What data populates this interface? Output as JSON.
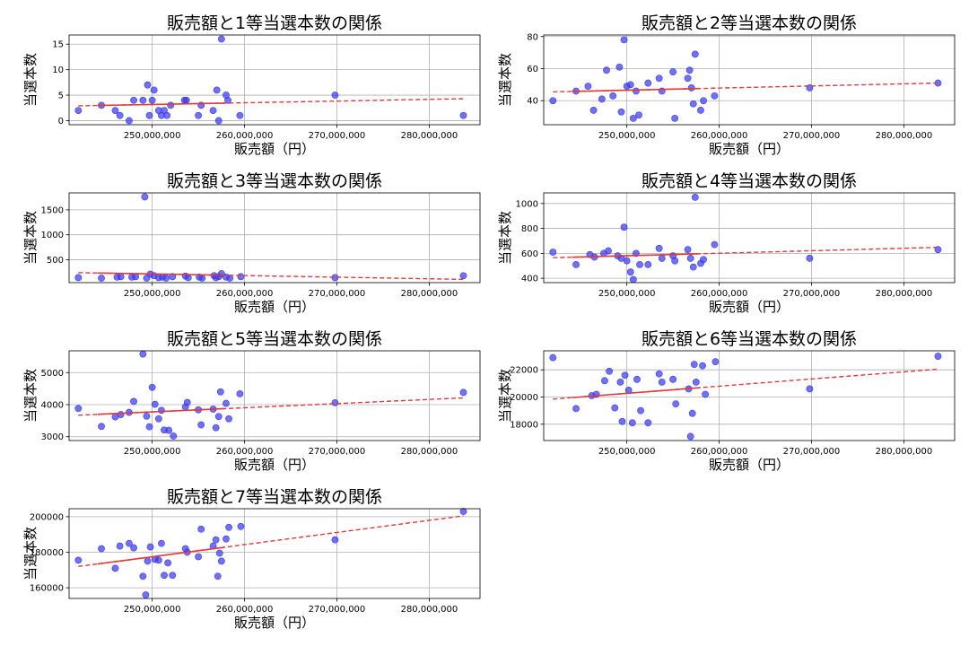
{
  "colors": {
    "point": "#3a3aee",
    "trend": "#e03a3a",
    "grid": "#b0b0b0"
  },
  "chart_data": [
    {
      "type": "scatter",
      "title": "販売額と1等当選本数の関係",
      "xlabel": "販売額（円）",
      "ylabel": "当選本数",
      "xlim": [
        241000000,
        285500000
      ],
      "ylim": [
        -0.8,
        16.8
      ],
      "xticks": [
        250000000,
        260000000,
        270000000,
        280000000
      ],
      "xtick_labels": [
        "250,000,000",
        "260,000,000",
        "270,000,000",
        "280,000,000"
      ],
      "yticks": [
        0,
        5,
        10,
        15
      ],
      "ytick_labels": [
        "0",
        "5",
        "10",
        "15"
      ],
      "grid": true,
      "points": [
        [
          242000000,
          2
        ],
        [
          244500000,
          3
        ],
        [
          246000000,
          2
        ],
        [
          246500000,
          1
        ],
        [
          247500000,
          0
        ],
        [
          248000000,
          4
        ],
        [
          249000000,
          4
        ],
        [
          249500000,
          7
        ],
        [
          249700000,
          1
        ],
        [
          250000000,
          4
        ],
        [
          250200000,
          6
        ],
        [
          250700000,
          2
        ],
        [
          251000000,
          1
        ],
        [
          251300000,
          2
        ],
        [
          251600000,
          1
        ],
        [
          252000000,
          3
        ],
        [
          253500000,
          4
        ],
        [
          253700000,
          4
        ],
        [
          255000000,
          1
        ],
        [
          255300000,
          3
        ],
        [
          256600000,
          2
        ],
        [
          257000000,
          6
        ],
        [
          257200000,
          0
        ],
        [
          257500000,
          16
        ],
        [
          258000000,
          5
        ],
        [
          258200000,
          4
        ],
        [
          259500000,
          1
        ],
        [
          269800000,
          5
        ],
        [
          283700000,
          1
        ]
      ],
      "trend": [
        [
          242000000,
          2.9
        ],
        [
          283700000,
          4.3
        ]
      ]
    },
    {
      "type": "scatter",
      "title": "販売額と2等当選本数の関係",
      "xlabel": "販売額（円）",
      "ylabel": "当選本数",
      "xlim": [
        241000000,
        285500000
      ],
      "ylim": [
        25,
        81
      ],
      "xticks": [
        250000000,
        260000000,
        270000000,
        280000000
      ],
      "xtick_labels": [
        "250,000,000",
        "260,000,000",
        "270,000,000",
        "280,000,000"
      ],
      "yticks": [
        40,
        60,
        80
      ],
      "ytick_labels": [
        "40",
        "60",
        "80"
      ],
      "grid": true,
      "points": [
        [
          242000000,
          40
        ],
        [
          244500000,
          46
        ],
        [
          245800000,
          49
        ],
        [
          246400000,
          34
        ],
        [
          247300000,
          41
        ],
        [
          247800000,
          59
        ],
        [
          248500000,
          43
        ],
        [
          249200000,
          61
        ],
        [
          249400000,
          33
        ],
        [
          249700000,
          78
        ],
        [
          250000000,
          49
        ],
        [
          250400000,
          50
        ],
        [
          250700000,
          29
        ],
        [
          251000000,
          46
        ],
        [
          251300000,
          31
        ],
        [
          252300000,
          51
        ],
        [
          253500000,
          54
        ],
        [
          253800000,
          46
        ],
        [
          255000000,
          58
        ],
        [
          255200000,
          29
        ],
        [
          256600000,
          54
        ],
        [
          256800000,
          59
        ],
        [
          257000000,
          48
        ],
        [
          257200000,
          38
        ],
        [
          257400000,
          69
        ],
        [
          258000000,
          34
        ],
        [
          258300000,
          40
        ],
        [
          259500000,
          43
        ],
        [
          269800000,
          48
        ],
        [
          283700000,
          51
        ]
      ],
      "trend": [
        [
          242000000,
          45.5
        ],
        [
          283700000,
          51
        ]
      ]
    },
    {
      "type": "scatter",
      "title": "販売額と3等当選本数の関係",
      "xlabel": "販売額（円）",
      "ylabel": "当選本数",
      "xlim": [
        241000000,
        285500000
      ],
      "ylim": [
        40,
        1840
      ],
      "xticks": [
        250000000,
        260000000,
        270000000,
        280000000
      ],
      "xtick_labels": [
        "250,000,000",
        "260,000,000",
        "270,000,000",
        "280,000,000"
      ],
      "yticks": [
        500,
        1000,
        1500
      ],
      "ytick_labels": [
        "500",
        "1000",
        "1500"
      ],
      "grid": true,
      "points": [
        [
          242000000,
          140
        ],
        [
          244500000,
          130
        ],
        [
          246200000,
          150
        ],
        [
          246600000,
          160
        ],
        [
          247800000,
          150
        ],
        [
          248200000,
          160
        ],
        [
          249200000,
          1760
        ],
        [
          249400000,
          130
        ],
        [
          249800000,
          210
        ],
        [
          250200000,
          180
        ],
        [
          250700000,
          140
        ],
        [
          251100000,
          150
        ],
        [
          251500000,
          130
        ],
        [
          252200000,
          160
        ],
        [
          253600000,
          170
        ],
        [
          253900000,
          140
        ],
        [
          255100000,
          150
        ],
        [
          255400000,
          130
        ],
        [
          256700000,
          180
        ],
        [
          256900000,
          140
        ],
        [
          257200000,
          160
        ],
        [
          257500000,
          220
        ],
        [
          258000000,
          150
        ],
        [
          258400000,
          130
        ],
        [
          259600000,
          160
        ],
        [
          269800000,
          140
        ],
        [
          283700000,
          180
        ]
      ],
      "trend": [
        [
          242000000,
          240
        ],
        [
          283700000,
          105
        ]
      ]
    },
    {
      "type": "scatter",
      "title": "販売額と4等当選本数の関係",
      "xlabel": "販売額（円）",
      "ylabel": "当選本数",
      "xlim": [
        241000000,
        285500000
      ],
      "ylim": [
        365,
        1085
      ],
      "xticks": [
        250000000,
        260000000,
        270000000,
        280000000
      ],
      "xtick_labels": [
        "250,000,000",
        "260,000,000",
        "270,000,000",
        "280,000,000"
      ],
      "yticks": [
        400,
        600,
        800,
        1000
      ],
      "ytick_labels": [
        "400",
        "600",
        "800",
        "1000"
      ],
      "grid": true,
      "points": [
        [
          242000000,
          610
        ],
        [
          244500000,
          510
        ],
        [
          246000000,
          590
        ],
        [
          246500000,
          570
        ],
        [
          247500000,
          600
        ],
        [
          248000000,
          620
        ],
        [
          249000000,
          580
        ],
        [
          249400000,
          560
        ],
        [
          249700000,
          810
        ],
        [
          250000000,
          540
        ],
        [
          250400000,
          450
        ],
        [
          250700000,
          390
        ],
        [
          251000000,
          600
        ],
        [
          251400000,
          510
        ],
        [
          252300000,
          510
        ],
        [
          253500000,
          640
        ],
        [
          253800000,
          560
        ],
        [
          255000000,
          580
        ],
        [
          255200000,
          540
        ],
        [
          256600000,
          630
        ],
        [
          256900000,
          560
        ],
        [
          257200000,
          490
        ],
        [
          257400000,
          1050
        ],
        [
          258000000,
          520
        ],
        [
          258300000,
          550
        ],
        [
          259500000,
          670
        ],
        [
          269800000,
          560
        ],
        [
          283700000,
          630
        ]
      ],
      "trend": [
        [
          242000000,
          565
        ],
        [
          283700000,
          648
        ]
      ]
    },
    {
      "type": "scatter",
      "title": "販売額と5等当選本数の関係",
      "xlabel": "販売額（円）",
      "ylabel": "当選本数",
      "xlim": [
        241000000,
        285500000
      ],
      "ylim": [
        2880,
        5680
      ],
      "xticks": [
        250000000,
        260000000,
        270000000,
        280000000
      ],
      "xtick_labels": [
        "250,000,000",
        "260,000,000",
        "270,000,000",
        "280,000,000"
      ],
      "yticks": [
        3000,
        4000,
        5000
      ],
      "ytick_labels": [
        "3000",
        "4000",
        "5000"
      ],
      "grid": true,
      "points": [
        [
          242000000,
          3880
        ],
        [
          244500000,
          3320
        ],
        [
          246000000,
          3620
        ],
        [
          246600000,
          3690
        ],
        [
          247500000,
          3760
        ],
        [
          248000000,
          4100
        ],
        [
          249000000,
          5580
        ],
        [
          249400000,
          3640
        ],
        [
          249700000,
          3310
        ],
        [
          250000000,
          4540
        ],
        [
          250300000,
          4010
        ],
        [
          250700000,
          3560
        ],
        [
          251000000,
          3820
        ],
        [
          251300000,
          3210
        ],
        [
          251800000,
          3200
        ],
        [
          252300000,
          3020
        ],
        [
          253600000,
          3930
        ],
        [
          253800000,
          4070
        ],
        [
          255000000,
          3840
        ],
        [
          255300000,
          3370
        ],
        [
          256600000,
          3860
        ],
        [
          256900000,
          3280
        ],
        [
          257200000,
          3630
        ],
        [
          257400000,
          4400
        ],
        [
          258000000,
          4040
        ],
        [
          258300000,
          3560
        ],
        [
          259500000,
          4340
        ],
        [
          269800000,
          4060
        ],
        [
          283700000,
          4380
        ]
      ],
      "trend": [
        [
          242000000,
          3670
        ],
        [
          283700000,
          4210
        ]
      ]
    },
    {
      "type": "scatter",
      "title": "販売額と6等当選本数の関係",
      "xlabel": "販売額（円）",
      "ylabel": "当選本数",
      "xlim": [
        241000000,
        285500000
      ],
      "ylim": [
        16800,
        23400
      ],
      "xticks": [
        250000000,
        260000000,
        270000000,
        280000000
      ],
      "xtick_labels": [
        "250,000,000",
        "260,000,000",
        "270,000,000",
        "280,000,000"
      ],
      "yticks": [
        18000,
        20000,
        22000
      ],
      "ytick_labels": [
        "18000",
        "20000",
        "22000"
      ],
      "grid": true,
      "points": [
        [
          242000000,
          22900
        ],
        [
          244500000,
          19150
        ],
        [
          246200000,
          20100
        ],
        [
          246700000,
          20200
        ],
        [
          247600000,
          21200
        ],
        [
          248100000,
          21900
        ],
        [
          248700000,
          19200
        ],
        [
          249300000,
          21100
        ],
        [
          249500000,
          18200
        ],
        [
          249800000,
          21600
        ],
        [
          250200000,
          20500
        ],
        [
          250600000,
          18100
        ],
        [
          251100000,
          21300
        ],
        [
          251500000,
          19000
        ],
        [
          252300000,
          18100
        ],
        [
          253500000,
          21700
        ],
        [
          253800000,
          21100
        ],
        [
          255000000,
          21300
        ],
        [
          255300000,
          19500
        ],
        [
          256700000,
          20600
        ],
        [
          256900000,
          17100
        ],
        [
          257100000,
          18800
        ],
        [
          257300000,
          22400
        ],
        [
          257500000,
          21100
        ],
        [
          258200000,
          22300
        ],
        [
          258500000,
          20200
        ],
        [
          259600000,
          22600
        ],
        [
          269800000,
          20600
        ],
        [
          283700000,
          23000
        ]
      ],
      "trend": [
        [
          242000000,
          19850
        ],
        [
          283700000,
          22050
        ]
      ]
    },
    {
      "type": "scatter",
      "title": "販売額と7等当選本数の関係",
      "xlabel": "販売額（円）",
      "ylabel": "当選本数",
      "xlim": [
        241000000,
        285500000
      ],
      "ylim": [
        154000,
        204500
      ],
      "xticks": [
        250000000,
        260000000,
        270000000,
        280000000
      ],
      "xtick_labels": [
        "250,000,000",
        "260,000,000",
        "270,000,000",
        "280,000,000"
      ],
      "yticks": [
        160000,
        180000,
        200000
      ],
      "ytick_labels": [
        "160000",
        "180000",
        "200000"
      ],
      "grid": true,
      "points": [
        [
          242000000,
          175500
        ],
        [
          244500000,
          182000
        ],
        [
          246000000,
          171000
        ],
        [
          246500000,
          183500
        ],
        [
          247500000,
          185000
        ],
        [
          248000000,
          182500
        ],
        [
          249000000,
          166500
        ],
        [
          249300000,
          156000
        ],
        [
          249500000,
          175000
        ],
        [
          249800000,
          183000
        ],
        [
          250300000,
          176000
        ],
        [
          250700000,
          175500
        ],
        [
          251000000,
          185000
        ],
        [
          251300000,
          167000
        ],
        [
          251700000,
          174000
        ],
        [
          252200000,
          167000
        ],
        [
          253600000,
          182000
        ],
        [
          253800000,
          180000
        ],
        [
          255000000,
          177500
        ],
        [
          255300000,
          193000
        ],
        [
          256600000,
          183500
        ],
        [
          256900000,
          187000
        ],
        [
          257100000,
          166500
        ],
        [
          257300000,
          179500
        ],
        [
          257500000,
          175000
        ],
        [
          258000000,
          187500
        ],
        [
          258300000,
          194000
        ],
        [
          259600000,
          194500
        ],
        [
          269800000,
          187000
        ],
        [
          283700000,
          203000
        ]
      ],
      "trend": [
        [
          242000000,
          172000
        ],
        [
          283700000,
          200500
        ]
      ]
    }
  ]
}
